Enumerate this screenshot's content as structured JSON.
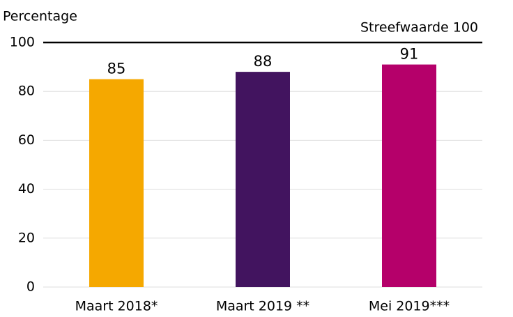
{
  "chart_data": {
    "type": "bar",
    "ylabel": "Percentage",
    "categories": [
      "Maart 2018*",
      "Maart 2019 **",
      "Mei 2019***"
    ],
    "values": [
      85,
      88,
      91
    ],
    "colors": [
      "#f5a800",
      "#42145f",
      "#b5006a"
    ],
    "ylim": [
      0,
      100
    ],
    "yticks": [
      0,
      20,
      40,
      60,
      80,
      100
    ],
    "grid": true,
    "reference_line": {
      "value": 100,
      "label": "Streefwaarde 100"
    }
  }
}
